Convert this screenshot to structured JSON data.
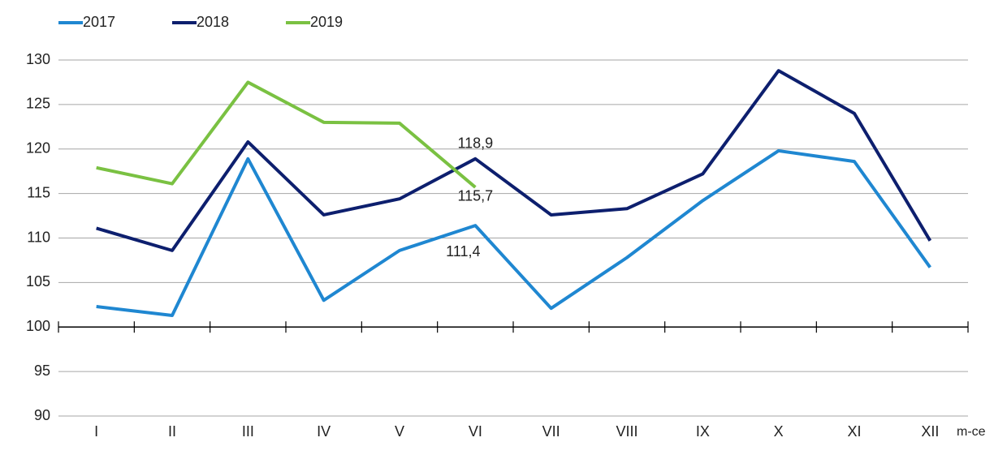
{
  "chart_data": {
    "type": "line",
    "categories": [
      "I",
      "II",
      "III",
      "IV",
      "V",
      "VI",
      "VII",
      "VIII",
      "IX",
      "X",
      "XI",
      "XII"
    ],
    "xlabel": "m-ce",
    "series": [
      {
        "name": "2017",
        "color": "#1f87d1",
        "values": [
          102.3,
          101.3,
          118.9,
          103.0,
          108.6,
          111.4,
          102.1,
          107.8,
          114.2,
          119.8,
          118.6,
          106.7
        ],
        "value_labels": [
          null,
          null,
          null,
          null,
          null,
          "111,4",
          null,
          null,
          null,
          null,
          null,
          null
        ]
      },
      {
        "name": "2018",
        "color": "#0d1f6e",
        "values": [
          111.1,
          108.6,
          120.8,
          112.6,
          114.4,
          118.9,
          112.6,
          113.3,
          117.2,
          128.8,
          124.0,
          109.7
        ],
        "value_labels": [
          null,
          null,
          null,
          null,
          null,
          "118,9",
          null,
          null,
          null,
          null,
          null,
          null
        ]
      },
      {
        "name": "2019",
        "color": "#7ac142",
        "values": [
          117.9,
          116.1,
          127.5,
          123.0,
          122.9,
          115.7,
          null,
          null,
          null,
          null,
          null,
          null
        ],
        "value_labels": [
          null,
          null,
          null,
          null,
          null,
          "115,7",
          null,
          null,
          null,
          null,
          null,
          null
        ]
      }
    ],
    "ylim": [
      90,
      130
    ],
    "yticks": [
      90,
      95,
      100,
      105,
      110,
      115,
      120,
      125,
      130
    ],
    "x_axis_at": 100,
    "grid": true,
    "legend": "top-left"
  }
}
